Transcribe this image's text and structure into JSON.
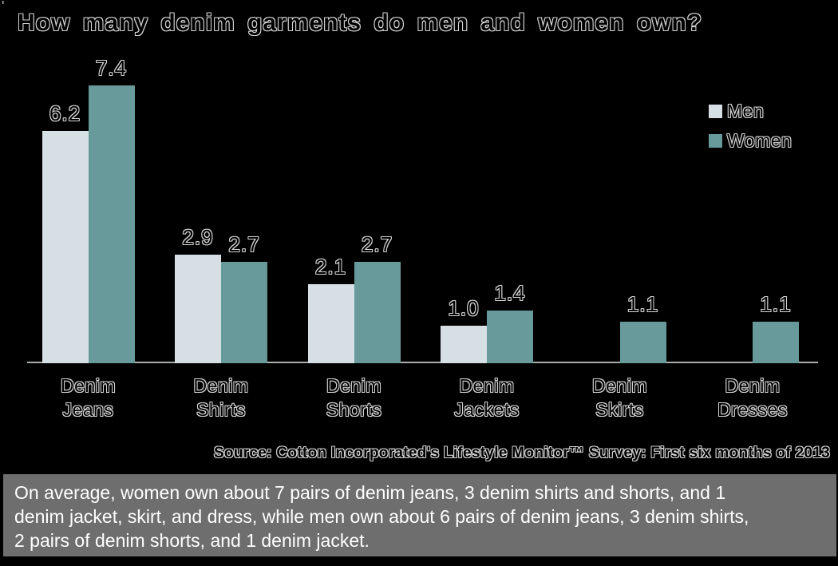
{
  "title": "How many denim garments do men and women own?",
  "legend": {
    "items": [
      {
        "label": "Men",
        "color": "#d6dfe4"
      },
      {
        "label": "Women",
        "color": "#689a9b"
      }
    ]
  },
  "source": "Source: Cotton Incorporated's Lifestyle Monitor™ Survey: First six months of 2013",
  "caption_lines": [
    "On average, women own about 7 pairs of denim jeans, 3 denim shirts and shorts, and 1",
    "denim jacket, skirt, and dress, while men own about 6 pairs of denim jeans, 3 denim shirts,",
    "2 pairs of denim shorts, and 1 denim jacket."
  ],
  "colors": {
    "background": "#000000",
    "men": "#d6dfe4",
    "women": "#689a9b",
    "axis_line": "#a9aeae",
    "text_outline": "#d4d4d4",
    "caption_bg": "#6e6e6e",
    "caption_text": "#ffffff"
  },
  "chart_data": {
    "type": "bar",
    "title": "How many denim garments do men and women own?",
    "categories": [
      "Denim Jeans",
      "Denim Shirts",
      "Denim Shorts",
      "Denim Jackets",
      "Denim Skirts",
      "Denim Dresses"
    ],
    "category_label_lines": [
      [
        "Denim",
        "Jeans"
      ],
      [
        "Denim",
        "Shirts"
      ],
      [
        "Denim",
        "Shorts"
      ],
      [
        "Denim",
        "Jackets"
      ],
      [
        "Denim",
        "Skirts"
      ],
      [
        "Denim",
        "Dresses"
      ]
    ],
    "series": [
      {
        "name": "Men",
        "values": [
          6.2,
          2.9,
          2.1,
          1.0,
          null,
          null
        ]
      },
      {
        "name": "Women",
        "values": [
          7.4,
          2.7,
          2.7,
          1.4,
          1.1,
          1.1
        ]
      }
    ],
    "value_labels": true,
    "ylim": [
      0,
      8.5
    ],
    "grid": false,
    "y_axis_shown": false,
    "legend_position": "top-right",
    "xlabel": "",
    "ylabel": ""
  }
}
